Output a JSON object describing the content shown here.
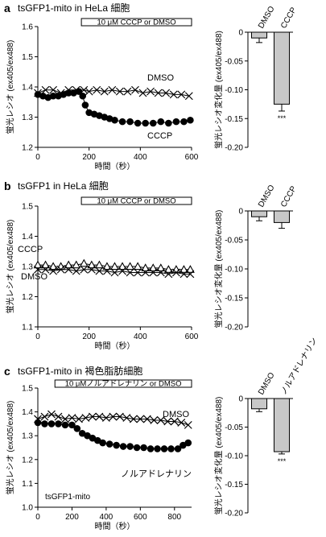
{
  "panels": [
    {
      "letter": "a",
      "title": "tsGFP1-mito in HeLa 細胞",
      "treatment_label": "10 μM CCCP or DMSO",
      "inset_label": ""
    },
    {
      "letter": "b",
      "title": "tsGFP1 in HeLa 細胞",
      "treatment_label": "10 μM CCCP or DMSO",
      "inset_label": ""
    },
    {
      "letter": "c",
      "title": "tsGFP1-mito in 褐色脂肪細胞",
      "treatment_label": "10 μMノルアドレナリン or DMSO",
      "inset_label": "tsGFP1-mito"
    }
  ],
  "significance": "***",
  "colors": {
    "bar_fill": "#c8c8c8",
    "line": "#000000"
  },
  "chart_data": [
    {
      "type": "line",
      "panel": "a",
      "xlabel": "時間（秒）",
      "ylabel": "蛍光レシオ (ex405/ex488)",
      "xlim": [
        0,
        600
      ],
      "ylim": [
        1.2,
        1.6
      ],
      "xticks": [
        0,
        200,
        400,
        600
      ],
      "yticks": [
        1.2,
        1.3,
        1.4,
        1.5,
        1.6
      ],
      "treatment_window": [
        170,
        600
      ],
      "series": [
        {
          "name": "DMSO",
          "marker": "cross",
          "x": [
            0,
            30,
            60,
            90,
            120,
            150,
            180,
            200,
            230,
            260,
            290,
            320,
            350,
            380,
            410,
            440,
            470,
            500,
            530,
            560,
            590
          ],
          "y": [
            1.38,
            1.39,
            1.39,
            1.38,
            1.39,
            1.39,
            1.39,
            1.385,
            1.39,
            1.385,
            1.39,
            1.385,
            1.385,
            1.39,
            1.38,
            1.385,
            1.38,
            1.38,
            1.375,
            1.375,
            1.37
          ]
        },
        {
          "name": "CCCP",
          "marker": "filled-circle",
          "x": [
            0,
            20,
            40,
            60,
            80,
            100,
            120,
            140,
            160,
            175,
            185,
            200,
            220,
            240,
            260,
            280,
            300,
            330,
            360,
            390,
            420,
            450,
            480,
            510,
            540,
            570,
            595
          ],
          "y": [
            1.375,
            1.37,
            1.365,
            1.37,
            1.37,
            1.375,
            1.38,
            1.38,
            1.385,
            1.37,
            1.34,
            1.315,
            1.31,
            1.305,
            1.3,
            1.295,
            1.29,
            1.285,
            1.285,
            1.28,
            1.28,
            1.28,
            1.285,
            1.28,
            1.285,
            1.285,
            1.29
          ]
        }
      ]
    },
    {
      "type": "bar",
      "panel": "a",
      "ylabel": "蛍光レシオ変化量 (ex405/ex488)",
      "categories": [
        "DMSO",
        "CCCP"
      ],
      "values": [
        -0.01,
        -0.125
      ],
      "errors": [
        0.008,
        0.012
      ],
      "ylim": [
        -0.2,
        0
      ],
      "yticks": [
        0,
        -0.05,
        -0.1,
        -0.15,
        -0.2
      ]
    },
    {
      "type": "line",
      "panel": "b",
      "xlabel": "時間（秒）",
      "ylabel": "蛍光レシオ (ex405/ex488)",
      "xlim": [
        0,
        600
      ],
      "ylim": [
        1.1,
        1.5
      ],
      "xticks": [
        0,
        200,
        400,
        600
      ],
      "yticks": [
        1.1,
        1.2,
        1.3,
        1.4,
        1.5
      ],
      "treatment_window": [
        170,
        600
      ],
      "series": [
        {
          "name": "CCCP",
          "marker": "open-triangle",
          "x": [
            0,
            30,
            60,
            90,
            120,
            150,
            180,
            210,
            240,
            270,
            300,
            330,
            360,
            390,
            420,
            450,
            480,
            510,
            540,
            570,
            595
          ],
          "y": [
            1.305,
            1.305,
            1.3,
            1.3,
            1.305,
            1.305,
            1.31,
            1.305,
            1.305,
            1.3,
            1.3,
            1.3,
            1.3,
            1.3,
            1.295,
            1.295,
            1.295,
            1.29,
            1.29,
            1.29,
            1.29
          ]
        },
        {
          "name": "DMSO",
          "marker": "cross",
          "x": [
            0,
            30,
            60,
            90,
            120,
            150,
            180,
            210,
            240,
            270,
            300,
            330,
            360,
            390,
            420,
            450,
            480,
            510,
            540,
            570,
            595
          ],
          "y": [
            1.29,
            1.29,
            1.285,
            1.29,
            1.29,
            1.285,
            1.29,
            1.29,
            1.285,
            1.285,
            1.28,
            1.285,
            1.28,
            1.28,
            1.28,
            1.28,
            1.28,
            1.275,
            1.28,
            1.275,
            1.275
          ]
        }
      ]
    },
    {
      "type": "bar",
      "panel": "b",
      "ylabel": "蛍光レシオ変化量 (ex405/ex488)",
      "categories": [
        "DMSO",
        "CCCP"
      ],
      "values": [
        -0.01,
        -0.02
      ],
      "errors": [
        0.007,
        0.01
      ],
      "ylim": [
        -0.2,
        0
      ],
      "yticks": [
        0,
        -0.05,
        -0.1,
        -0.15,
        -0.2
      ]
    },
    {
      "type": "line",
      "panel": "c",
      "xlabel": "時間（秒）",
      "ylabel": "蛍光レシオ (ex405/ex488)",
      "xlim": [
        0,
        900
      ],
      "ylim": [
        1.0,
        1.5
      ],
      "xticks": [
        0,
        200,
        400,
        600,
        800
      ],
      "yticks": [
        1.0,
        1.1,
        1.2,
        1.3,
        1.4,
        1.5
      ],
      "treatment_window": [
        100,
        900
      ],
      "series": [
        {
          "name": "DMSO",
          "marker": "cross",
          "x": [
            0,
            40,
            80,
            120,
            160,
            200,
            240,
            280,
            320,
            360,
            400,
            440,
            480,
            520,
            560,
            600,
            640,
            680,
            720,
            760,
            800,
            840,
            880
          ],
          "y": [
            1.37,
            1.38,
            1.39,
            1.38,
            1.37,
            1.375,
            1.37,
            1.375,
            1.38,
            1.38,
            1.375,
            1.38,
            1.38,
            1.375,
            1.37,
            1.37,
            1.37,
            1.365,
            1.365,
            1.36,
            1.36,
            1.355,
            1.345
          ]
        },
        {
          "name": "ノルアドレナリン",
          "marker": "filled-circle",
          "x": [
            0,
            40,
            80,
            120,
            160,
            200,
            230,
            260,
            290,
            320,
            350,
            380,
            420,
            460,
            500,
            540,
            580,
            620,
            660,
            700,
            740,
            780,
            820,
            850,
            880
          ],
          "y": [
            1.355,
            1.35,
            1.35,
            1.35,
            1.345,
            1.345,
            1.33,
            1.31,
            1.3,
            1.29,
            1.28,
            1.27,
            1.265,
            1.26,
            1.255,
            1.255,
            1.25,
            1.25,
            1.245,
            1.245,
            1.245,
            1.245,
            1.245,
            1.26,
            1.27
          ]
        }
      ]
    },
    {
      "type": "bar",
      "panel": "c",
      "ylabel": "蛍光レシオ変化量 (ex405/ex488)",
      "categories": [
        "DMSO",
        "ノルアドレナリン"
      ],
      "values": [
        -0.018,
        -0.093
      ],
      "errors": [
        0.005,
        0.004
      ],
      "ylim": [
        -0.2,
        0
      ],
      "yticks": [
        0,
        -0.05,
        -0.1,
        -0.15,
        -0.2
      ]
    }
  ]
}
